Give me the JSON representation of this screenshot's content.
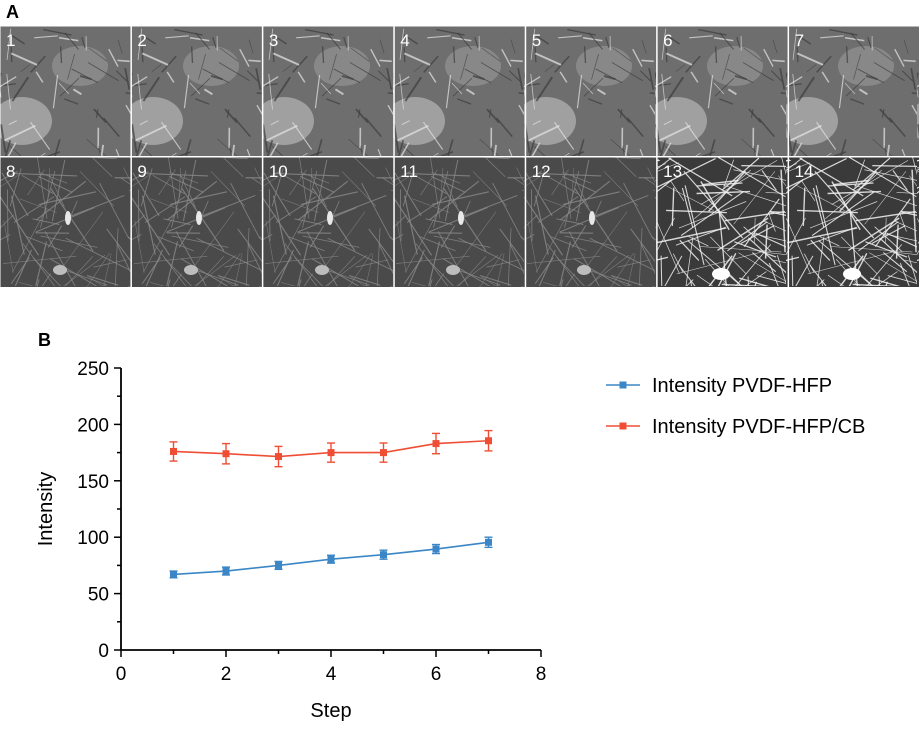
{
  "figure": {
    "panel_a_label": "A",
    "panel_b_label": "B"
  },
  "sem_images": {
    "row1_labels": [
      "1",
      "2",
      "3",
      "4",
      "5",
      "6",
      "7"
    ],
    "row2_labels": [
      "8",
      "9",
      "10",
      "11",
      "12",
      "13",
      "14"
    ]
  },
  "colors": {
    "series1": "#3b86c6",
    "series2": "#ef4e35"
  },
  "chart_data": {
    "type": "line",
    "title": "",
    "xlabel": "Step",
    "ylabel": "Intensity",
    "xlim": [
      0,
      8
    ],
    "ylim": [
      0,
      250
    ],
    "xticks": [
      0,
      2,
      4,
      6,
      8
    ],
    "yticks": [
      0,
      50,
      100,
      150,
      200,
      250
    ],
    "grid": false,
    "legend_position": "right",
    "x": [
      1,
      2,
      3,
      4,
      5,
      6,
      7
    ],
    "series": [
      {
        "name": "Intensity PVDF-HFP",
        "color": "#3b86c6",
        "values": [
          67,
          70,
          75,
          80.5,
          84.5,
          89.5,
          95.5
        ],
        "errors": [
          3,
          3.5,
          3.5,
          3.5,
          4,
          4,
          4.5
        ]
      },
      {
        "name": "Intensity PVDF-HFP/CB",
        "color": "#ef4e35",
        "values": [
          176,
          174,
          171.5,
          175,
          175,
          183,
          185.5
        ],
        "errors": [
          8.5,
          9,
          9,
          8.5,
          8.5,
          9,
          9
        ]
      }
    ]
  }
}
